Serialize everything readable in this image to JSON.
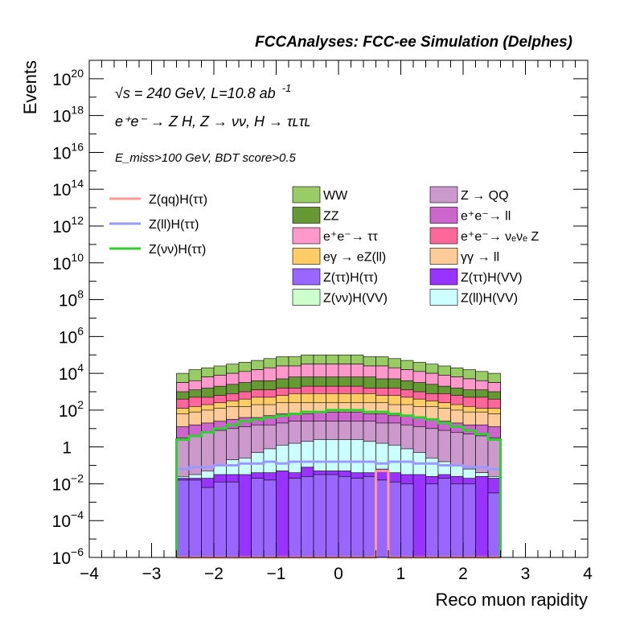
{
  "chart_data": {
    "type": "area",
    "title": "FCCAnalyses: FCC-ee Simulation (Delphes)",
    "xlabel": "Reco muon rapidity",
    "ylabel": "Events",
    "xlim": [
      -4,
      4
    ],
    "ylim_log10": [
      -6,
      21
    ],
    "yscale": "log",
    "grid": false,
    "x_ticks": [
      "−4",
      "−3",
      "−2",
      "−1",
      "0",
      "1",
      "2",
      "3",
      "4"
    ],
    "y_ticks": [
      {
        "exp": -6,
        "label": "10",
        "sup": "−6"
      },
      {
        "exp": -4,
        "label": "10",
        "sup": "−4"
      },
      {
        "exp": -2,
        "label": "10",
        "sup": "−2"
      },
      {
        "exp": 0,
        "label": "1",
        "sup": ""
      },
      {
        "exp": 2,
        "label": "10",
        "sup": "2"
      },
      {
        "exp": 4,
        "label": "10",
        "sup": "4"
      },
      {
        "exp": 6,
        "label": "10",
        "sup": "6"
      },
      {
        "exp": 8,
        "label": "10",
        "sup": "8"
      },
      {
        "exp": 10,
        "label": "10",
        "sup": "10"
      },
      {
        "exp": 12,
        "label": "10",
        "sup": "12"
      },
      {
        "exp": 14,
        "label": "10",
        "sup": "14"
      },
      {
        "exp": 16,
        "label": "10",
        "sup": "16"
      },
      {
        "exp": 18,
        "label": "10",
        "sup": "18"
      },
      {
        "exp": 20,
        "label": "10",
        "sup": "20"
      }
    ],
    "annotations": {
      "energy": "√s = 240 GeV, L=10.8 ab",
      "energy_sup": "-1",
      "process": "e⁺e⁻ → Z H, Z → νν, H → τʟτʟ",
      "selection": "E_miss>100 GeV, BDT score>0.5"
    },
    "legend_placement": "center",
    "bins": {
      "start": -2.6,
      "width": 0.2,
      "count": 26
    },
    "stack_order_bottom_to_top": [
      "Z(ττ)H(ττ)",
      "Z(ττ)H(VV)",
      "Z(ll)H(VV)",
      "Z → QQ",
      "e⁺e⁻→ ll",
      "γγ → ll",
      "eγ → eZ(ll)",
      "e⁺e⁻→ νₑνₑ Z",
      "ZZ",
      "e⁺e⁻→ ττ",
      "Z(νν)H(VV)",
      "WW"
    ],
    "stacked_totals_log10": [
      {
        "name": "Z(ττ)H(ττ)",
        "color": "#9966ff",
        "values": [
          -1.8,
          -1.8,
          -2.2,
          -1.9,
          -1.9,
          -6,
          -1.7,
          -1.8,
          -6,
          -1.7,
          -1.6,
          -1.5,
          -1.5,
          -1.6,
          -1.7,
          -1.6,
          -1.8,
          -1.9,
          -2.0,
          -6,
          -2.0,
          -1.7,
          -2.0,
          -2.0,
          -6,
          -2.5
        ]
      },
      {
        "name": "Z(ττ)H(VV)",
        "color": "#9933ff",
        "values": [
          -1.7,
          -1.7,
          -1.7,
          -1.5,
          -1.5,
          -1.5,
          -1.4,
          -1.4,
          -1.3,
          -1.4,
          -1.1,
          -1.3,
          -1.3,
          -1.3,
          -1.4,
          -1.4,
          -1.2,
          -1.4,
          -1.5,
          -1.5,
          -1.6,
          -1.5,
          -1.6,
          -1.7,
          -1.6,
          -1.7
        ]
      },
      {
        "name": "Z(ll)H(VV)",
        "color": "#ccffff",
        "values": [
          -1.6,
          -1.5,
          -1.3,
          -1.0,
          -0.7,
          -0.6,
          -0.3,
          -0.1,
          0.1,
          0.2,
          0.3,
          0.4,
          0.4,
          0.4,
          0.4,
          0.3,
          0.2,
          0.1,
          -0.1,
          -0.3,
          -0.6,
          -0.8,
          -1.0,
          -1.2,
          -1.4,
          -1.6
        ]
      },
      {
        "name": "Z → QQ",
        "color": "#cc99cc",
        "values": [
          0.5,
          0.6,
          0.8,
          0.9,
          1.0,
          1.1,
          1.2,
          1.2,
          1.3,
          1.4,
          1.4,
          1.4,
          1.4,
          1.4,
          1.4,
          1.4,
          1.3,
          1.3,
          1.2,
          1.1,
          1.0,
          0.9,
          0.8,
          0.7,
          0.6,
          0.5
        ]
      },
      {
        "name": "e⁺e⁻→ ll",
        "color": "#cc66cc",
        "values": [
          1.1,
          1.2,
          1.3,
          1.4,
          1.5,
          1.6,
          1.6,
          1.7,
          1.8,
          1.8,
          1.8,
          1.9,
          1.9,
          1.9,
          1.9,
          1.8,
          1.8,
          1.7,
          1.7,
          1.6,
          1.5,
          1.4,
          1.3,
          1.2,
          1.2,
          1.1
        ]
      },
      {
        "name": "γγ → ll",
        "color": "#ffcc99",
        "values": [
          1.8,
          1.9,
          2.0,
          2.1,
          2.2,
          2.2,
          2.3,
          2.3,
          2.4,
          2.4,
          2.4,
          2.4,
          2.4,
          2.4,
          2.4,
          2.4,
          2.4,
          2.3,
          2.3,
          2.2,
          2.2,
          2.1,
          2.0,
          1.9,
          1.9,
          1.8
        ]
      },
      {
        "name": "eγ → eZ(ll)",
        "color": "#ffcc66",
        "values": [
          2.1,
          2.2,
          2.3,
          2.4,
          2.5,
          2.6,
          2.7,
          2.7,
          2.8,
          2.9,
          2.9,
          2.9,
          2.9,
          2.9,
          2.9,
          2.9,
          2.8,
          2.8,
          2.7,
          2.6,
          2.5,
          2.4,
          2.3,
          2.2,
          2.1,
          2.1
        ]
      },
      {
        "name": "e⁺e⁻→ νₑνₑ Z",
        "color": "#ff6699",
        "values": [
          2.6,
          2.7,
          2.7,
          2.8,
          2.9,
          3.0,
          3.1,
          3.1,
          3.2,
          3.2,
          3.3,
          3.3,
          3.3,
          3.3,
          3.3,
          3.2,
          3.2,
          3.2,
          3.1,
          3.0,
          2.9,
          2.9,
          2.8,
          2.7,
          2.7,
          2.6
        ]
      },
      {
        "name": "ZZ",
        "color": "#669933",
        "values": [
          3.0,
          3.1,
          3.2,
          3.3,
          3.4,
          3.5,
          3.6,
          3.6,
          3.7,
          3.8,
          3.8,
          3.8,
          3.8,
          3.8,
          3.8,
          3.8,
          3.7,
          3.7,
          3.6,
          3.5,
          3.4,
          3.3,
          3.2,
          3.1,
          3.1,
          3.0
        ]
      },
      {
        "name": "e⁺e⁻→ ττ",
        "color": "#ff99cc",
        "values": [
          3.5,
          3.6,
          3.8,
          3.9,
          4.0,
          4.1,
          4.2,
          4.3,
          4.4,
          4.4,
          4.5,
          4.5,
          4.5,
          4.5,
          4.5,
          4.4,
          4.4,
          4.3,
          4.2,
          4.1,
          4.0,
          3.9,
          3.8,
          3.7,
          3.6,
          3.5
        ]
      },
      {
        "name": "Z(νν)H(VV)",
        "color": "#ccffcc",
        "values": [
          3.5,
          3.6,
          3.8,
          3.9,
          4.0,
          4.1,
          4.2,
          4.3,
          4.4,
          4.4,
          4.5,
          4.5,
          4.5,
          4.5,
          4.5,
          4.4,
          4.4,
          4.3,
          4.2,
          4.1,
          4.0,
          3.9,
          3.8,
          3.7,
          3.6,
          3.5
        ]
      },
      {
        "name": "WW",
        "color": "#99cc66",
        "values": [
          4.0,
          4.2,
          4.3,
          4.4,
          4.5,
          4.6,
          4.7,
          4.8,
          4.9,
          4.9,
          5.0,
          5.0,
          5.0,
          5.0,
          5.0,
          4.9,
          4.9,
          4.8,
          4.7,
          4.6,
          4.5,
          4.4,
          4.3,
          4.2,
          4.1,
          4.0
        ]
      }
    ],
    "signal_lines_log10": [
      {
        "name": "Z(qq)H(ττ)",
        "color": "#ff9999",
        "values": [
          -6,
          -6,
          -6,
          -6,
          -6,
          -6,
          -6,
          -6,
          -6,
          -6,
          -6,
          -6,
          -6,
          -6,
          -6,
          -6,
          -1.3,
          -6,
          -6,
          -6,
          -6,
          -6,
          -6,
          -6,
          -6,
          -6
        ]
      },
      {
        "name": "Z(ll)H(ττ)",
        "color": "#9999ff",
        "values": [
          -1.2,
          -1.1,
          -1.1,
          -1.0,
          -1.0,
          -0.9,
          -0.9,
          -0.8,
          -0.9,
          -0.8,
          -0.8,
          -0.8,
          -0.8,
          -0.8,
          -0.8,
          -0.8,
          -0.9,
          -0.8,
          -0.8,
          -0.9,
          -0.9,
          -1.0,
          -1.0,
          -1.1,
          -1.1,
          -1.2
        ]
      },
      {
        "name": "Z(νν)H(ττ)",
        "color": "#33cc33",
        "values": [
          0.4,
          0.6,
          0.8,
          1.0,
          1.2,
          1.4,
          1.5,
          1.6,
          1.7,
          1.8,
          1.9,
          1.9,
          2.0,
          2.0,
          2.0,
          1.9,
          1.9,
          1.8,
          1.7,
          1.6,
          1.5,
          1.3,
          1.1,
          0.9,
          0.7,
          0.4
        ]
      }
    ],
    "legend_lines": [
      {
        "label": "Z(qq)H(ττ)",
        "color": "#ff9999"
      },
      {
        "label": "Z(ll)H(ττ)",
        "color": "#9999ff"
      },
      {
        "label": "Z(νν)H(ττ)",
        "color": "#33cc33"
      }
    ],
    "legend_boxes": [
      {
        "label": "WW",
        "color": "#99cc66"
      },
      {
        "label": "Z → QQ",
        "color": "#cc99cc"
      },
      {
        "label": "ZZ",
        "color": "#669933"
      },
      {
        "label": "e⁺e⁻→ ll",
        "color": "#cc66cc"
      },
      {
        "label": "e⁺e⁻→ ττ",
        "color": "#ff99cc"
      },
      {
        "label": "e⁺e⁻→ νₑνₑ Z",
        "color": "#ff6699"
      },
      {
        "label": "eγ → eZ(ll)",
        "color": "#ffcc66"
      },
      {
        "label": "γγ → ll",
        "color": "#ffcc99"
      },
      {
        "label": "Z(ττ)H(ττ)",
        "color": "#9966ff"
      },
      {
        "label": "Z(ττ)H(VV)",
        "color": "#9933ff"
      },
      {
        "label": "Z(νν)H(VV)",
        "color": "#ccffcc"
      },
      {
        "label": "Z(ll)H(VV)",
        "color": "#ccffff"
      }
    ]
  }
}
